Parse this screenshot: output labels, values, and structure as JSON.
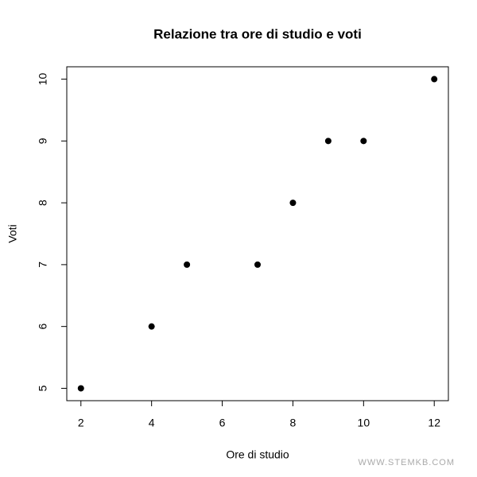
{
  "chart_data": {
    "type": "scatter",
    "title": "Relazione tra ore di studio e voti",
    "x_label": "Ore di studio",
    "y_label": "Voti",
    "series": [
      {
        "name": "Voti",
        "color": "#000000",
        "x": [
          2,
          4,
          5,
          7,
          8,
          9,
          10,
          12
        ],
        "values": [
          5,
          6,
          7,
          7,
          8,
          9,
          9,
          10
        ]
      }
    ],
    "xlim": [
      1.6,
      12.4
    ],
    "ylim": [
      4.8,
      10.2
    ],
    "xticks": [
      2,
      4,
      6,
      8,
      10,
      12
    ],
    "yticks": [
      5,
      6,
      7,
      8,
      9,
      10
    ],
    "grid": false,
    "watermark": "WWW.STEMKB.COM"
  }
}
